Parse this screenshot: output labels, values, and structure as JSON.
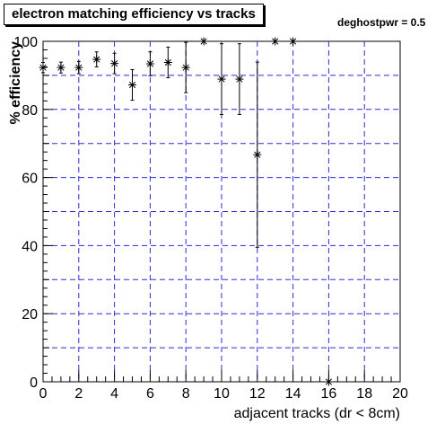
{
  "chart_data": {
    "type": "scatter",
    "title": "electron matching efficiency vs tracks",
    "subtitle": "deghostpwr = 0.5",
    "xlabel": "adjacent tracks (dr < 8cm)",
    "ylabel": "% efficiency",
    "xlim": [
      0,
      20
    ],
    "ylim": [
      0,
      100
    ],
    "x_ticks": [
      "0",
      "2",
      "4",
      "6",
      "8",
      "10",
      "12",
      "14",
      "16",
      "18",
      "20"
    ],
    "y_ticks": [
      "0",
      "20",
      "40",
      "60",
      "80",
      "100"
    ],
    "grid": true,
    "grid_color": "#2b2bd9",
    "marker": "star",
    "series": [
      {
        "points": [
          {
            "x": 0,
            "y": 92.3,
            "err_lo": 1.5,
            "err_hi": 1.5
          },
          {
            "x": 1,
            "y": 92.3,
            "err_lo": 1.6,
            "err_hi": 1.6
          },
          {
            "x": 2,
            "y": 92.3,
            "err_lo": 1.8,
            "err_hi": 1.8
          },
          {
            "x": 3,
            "y": 94.7,
            "err_lo": 2.2,
            "err_hi": 2.2
          },
          {
            "x": 4,
            "y": 93.5,
            "err_lo": 3.0,
            "err_hi": 3.0
          },
          {
            "x": 5,
            "y": 87.2,
            "err_lo": 4.5,
            "err_hi": 4.5
          },
          {
            "x": 6,
            "y": 93.4,
            "err_lo": 3.5,
            "err_hi": 3.5
          },
          {
            "x": 7,
            "y": 93.8,
            "err_lo": 4.5,
            "err_hi": 4.5
          },
          {
            "x": 8,
            "y": 92.3,
            "err_lo": 7.4,
            "err_hi": 7.4
          },
          {
            "x": 9,
            "y": 100,
            "err_lo": 0,
            "err_hi": 0
          },
          {
            "x": 10,
            "y": 88.9,
            "err_lo": 10.4,
            "err_hi": 10.4
          },
          {
            "x": 11,
            "y": 88.9,
            "err_lo": 10.4,
            "err_hi": 10.4
          },
          {
            "x": 12,
            "y": 66.7,
            "err_lo": 27.2,
            "err_hi": 27.2
          },
          {
            "x": 13,
            "y": 100,
            "err_lo": 0,
            "err_hi": 0
          },
          {
            "x": 14,
            "y": 100,
            "err_lo": 0,
            "err_hi": 0
          },
          {
            "x": 16,
            "y": 0,
            "err_lo": 0,
            "err_hi": 0
          }
        ]
      }
    ]
  }
}
